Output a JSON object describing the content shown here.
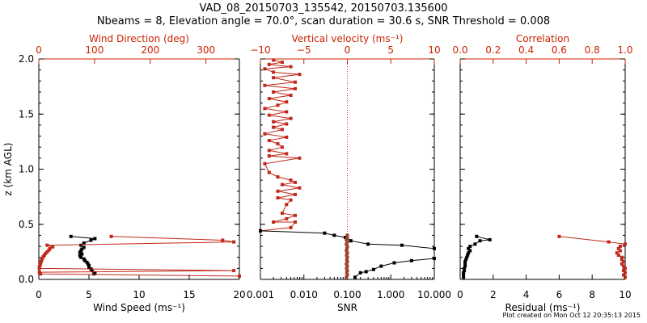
{
  "header": {
    "line1": "VAD_08_20150703_135542, 20150703.135600",
    "line2": "Nbeams = 8, Elevation angle = 70.0°, scan duration = 30.6 s, SNR Threshold = 0.008"
  },
  "footer": {
    "created": "Plot created on Mon Oct 12 20:35:13 2015"
  },
  "colors": {
    "axis": "#000000",
    "secondary": "#cc2200",
    "series_top": "#c0281b",
    "series_bottom": "#000000",
    "red_marker": "#a0402a"
  },
  "chart_data": [
    {
      "type": "line",
      "ylabel": "z (km AGL)",
      "ylim": [
        0,
        2.0
      ],
      "yticks": [
        "0.0",
        "0.5",
        "1.0",
        "1.5",
        "2.0"
      ],
      "xlabel_bottom": "Wind Speed (ms⁻¹)",
      "xlim_bottom": [
        0,
        20
      ],
      "xticks_bottom": [
        "0",
        "5",
        "10",
        "15",
        "20"
      ],
      "xlabel_top": "Wind Direction (deg)",
      "xlim_top": [
        0,
        360
      ],
      "xticks_top": [
        "0",
        "100",
        "200",
        "300"
      ],
      "series": [
        {
          "axis": "bottom",
          "points": [
            [
              3.2,
              0.39
            ],
            [
              5.6,
              0.37
            ],
            [
              5.2,
              0.355
            ],
            [
              4.5,
              0.33
            ],
            [
              4.2,
              0.31
            ],
            [
              4.5,
              0.29
            ],
            [
              4.3,
              0.275
            ],
            [
              4.2,
              0.26
            ],
            [
              4.1,
              0.245
            ],
            [
              4.3,
              0.23
            ],
            [
              4.1,
              0.215
            ],
            [
              4.2,
              0.2
            ],
            [
              4.5,
              0.185
            ],
            [
              4.6,
              0.17
            ],
            [
              4.8,
              0.155
            ],
            [
              4.9,
              0.14
            ],
            [
              5.0,
              0.125
            ],
            [
              5.0,
              0.11
            ],
            [
              5.2,
              0.095
            ],
            [
              5.3,
              0.08
            ],
            [
              5.6,
              0.06
            ],
            [
              5.5,
              0.05
            ]
          ]
        },
        {
          "axis": "top",
          "points": [
            [
              130,
              0.39
            ],
            [
              330,
              0.355
            ],
            [
              350,
              0.34
            ],
            [
              15,
              0.31
            ],
            [
              25,
              0.295
            ],
            [
              20,
              0.28
            ],
            [
              18,
              0.265
            ],
            [
              15,
              0.25
            ],
            [
              12,
              0.235
            ],
            [
              10,
              0.22
            ],
            [
              8,
              0.205
            ],
            [
              6,
              0.19
            ],
            [
              5,
              0.175
            ],
            [
              4,
              0.16
            ],
            [
              3,
              0.145
            ],
            [
              2,
              0.13
            ],
            [
              1,
              0.115
            ],
            [
              1,
              0.1
            ],
            [
              350,
              0.08
            ],
            [
              1,
              0.065
            ],
            [
              3,
              0.05
            ],
            [
              360,
              0.03
            ]
          ]
        }
      ]
    },
    {
      "type": "line",
      "xlabel_bottom": "SNR",
      "xscale_bottom": "log",
      "xlim_bottom": [
        0.001,
        10
      ],
      "xticks_bottom": [
        "0.001",
        "0.010",
        "0.100",
        "1.000",
        "10.000"
      ],
      "xlabel_top": "Vertical velocity (ms⁻¹)",
      "xlim_top": [
        -10,
        10
      ],
      "xticks_top": [
        "−10",
        "−5",
        "0",
        "5",
        "10"
      ],
      "series": [
        {
          "axis": "top",
          "points": [
            [
              -10,
              0.44
            ],
            [
              -6.5,
              0.47
            ],
            [
              -6,
              0.52
            ],
            [
              -8.5,
              0.52
            ],
            [
              -7,
              0.55
            ],
            [
              -6,
              0.58
            ],
            [
              -7.5,
              0.6
            ],
            [
              -7,
              0.68
            ],
            [
              -6.5,
              0.72
            ],
            [
              -8,
              0.74
            ],
            [
              -6,
              0.77
            ],
            [
              -8,
              0.8
            ],
            [
              -5.5,
              0.83
            ],
            [
              -7.5,
              0.86
            ],
            [
              -6,
              0.88
            ],
            [
              -6.5,
              0.9
            ],
            [
              -8,
              0.93
            ],
            [
              -9,
              0.97
            ],
            [
              -9.5,
              1.05
            ],
            [
              -5.5,
              1.1
            ],
            [
              -9,
              1.12
            ],
            [
              -7,
              1.14
            ],
            [
              -9,
              1.17
            ],
            [
              -7.5,
              1.2
            ],
            [
              -8,
              1.23
            ],
            [
              -9,
              1.26
            ],
            [
              -7,
              1.29
            ],
            [
              -9.5,
              1.32
            ],
            [
              -7.5,
              1.36
            ],
            [
              -8.5,
              1.38
            ],
            [
              -7,
              1.41
            ],
            [
              -8.5,
              1.43
            ],
            [
              -6.5,
              1.46
            ],
            [
              -9,
              1.49
            ],
            [
              -7,
              1.52
            ],
            [
              -9.5,
              1.55
            ],
            [
              -8,
              1.58
            ],
            [
              -7,
              1.61
            ],
            [
              -9,
              1.64
            ],
            [
              -6.5,
              1.67
            ],
            [
              -8.5,
              1.7
            ],
            [
              -6,
              1.73
            ],
            [
              -9.5,
              1.76
            ],
            [
              -6,
              1.79
            ],
            [
              -8.5,
              1.83
            ],
            [
              -5.5,
              1.86
            ],
            [
              -8.5,
              1.88
            ],
            [
              -9.5,
              1.91
            ],
            [
              -6.5,
              1.93
            ],
            [
              -9,
              1.95
            ],
            [
              -7.5,
              1.97
            ],
            [
              -8.5,
              1.99
            ]
          ]
        },
        {
          "axis": "bottom",
          "points": [
            [
              0.001,
              0.44
            ],
            [
              0.03,
              0.42
            ],
            [
              0.05,
              0.4
            ],
            [
              0.09,
              0.38
            ],
            [
              0.12,
              0.35
            ],
            [
              0.3,
              0.32
            ],
            [
              1.8,
              0.31
            ],
            [
              10,
              0.28
            ],
            [
              10,
              0.19
            ],
            [
              3,
              0.17
            ],
            [
              1.2,
              0.15
            ],
            [
              0.6,
              0.12
            ],
            [
              0.4,
              0.09
            ],
            [
              0.27,
              0.07
            ],
            [
              0.2,
              0.06
            ],
            [
              0.15,
              0.02
            ]
          ]
        },
        {
          "axis": "bottom",
          "marker_only": true,
          "points": [
            [
              0.1,
              0.4
            ],
            [
              0.1,
              0.38
            ],
            [
              0.095,
              0.36
            ],
            [
              0.1,
              0.34
            ],
            [
              0.095,
              0.32
            ],
            [
              0.1,
              0.3
            ],
            [
              0.098,
              0.28
            ],
            [
              0.095,
              0.26
            ],
            [
              0.1,
              0.24
            ],
            [
              0.096,
              0.22
            ],
            [
              0.1,
              0.2
            ],
            [
              0.097,
              0.18
            ],
            [
              0.1,
              0.16
            ],
            [
              0.095,
              0.14
            ],
            [
              0.1,
              0.12
            ],
            [
              0.096,
              0.1
            ],
            [
              0.1,
              0.08
            ],
            [
              0.097,
              0.06
            ],
            [
              0.1,
              0.04
            ],
            [
              0.095,
              0.02
            ]
          ]
        }
      ]
    },
    {
      "type": "line",
      "xlabel_bottom": "Residual (ms⁻¹)",
      "xlim_bottom": [
        0,
        10
      ],
      "xticks_bottom": [
        "0",
        "2",
        "4",
        "6",
        "8",
        "10"
      ],
      "xlabel_top": "Correlation",
      "xlim_top": [
        0,
        1.0
      ],
      "xticks_top": [
        "0.0",
        "0.2",
        "0.4",
        "0.6",
        "0.8",
        "1.0"
      ],
      "series": [
        {
          "axis": "bottom",
          "points": [
            [
              1.0,
              0.39
            ],
            [
              1.8,
              0.36
            ],
            [
              1.2,
              0.35
            ],
            [
              0.9,
              0.32
            ],
            [
              0.6,
              0.3
            ],
            [
              0.5,
              0.28
            ],
            [
              0.6,
              0.26
            ],
            [
              0.5,
              0.24
            ],
            [
              0.45,
              0.22
            ],
            [
              0.4,
              0.2
            ],
            [
              0.35,
              0.18
            ],
            [
              0.3,
              0.16
            ],
            [
              0.3,
              0.14
            ],
            [
              0.3,
              0.12
            ],
            [
              0.25,
              0.1
            ],
            [
              0.25,
              0.08
            ],
            [
              0.2,
              0.06
            ],
            [
              0.2,
              0.04
            ],
            [
              0.2,
              0.02
            ]
          ]
        },
        {
          "axis": "top",
          "points": [
            [
              0.6,
              0.39
            ],
            [
              0.9,
              0.34
            ],
            [
              1.0,
              0.32
            ],
            [
              0.97,
              0.3
            ],
            [
              0.96,
              0.28
            ],
            [
              0.97,
              0.26
            ],
            [
              0.95,
              0.24
            ],
            [
              0.96,
              0.22
            ],
            [
              0.98,
              0.2
            ],
            [
              0.98,
              0.18
            ],
            [
              0.99,
              0.16
            ],
            [
              0.98,
              0.14
            ],
            [
              0.99,
              0.12
            ],
            [
              1.0,
              0.1
            ],
            [
              0.99,
              0.08
            ],
            [
              1.0,
              0.06
            ],
            [
              0.99,
              0.04
            ],
            [
              1.0,
              0.02
            ]
          ]
        }
      ]
    }
  ]
}
